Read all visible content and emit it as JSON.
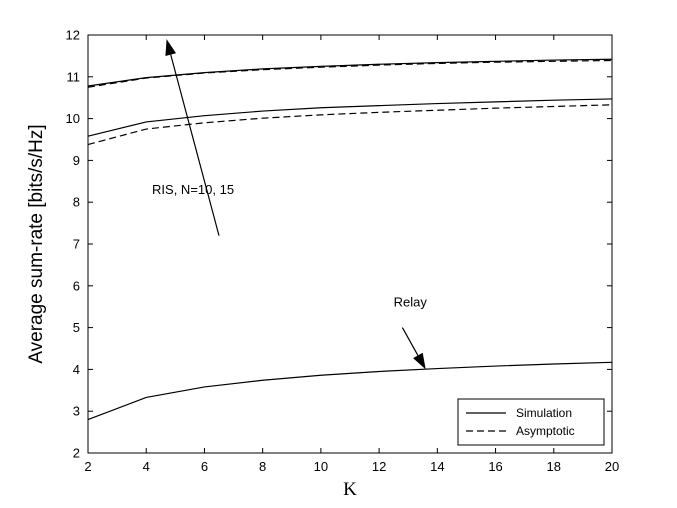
{
  "chart_data": {
    "type": "line",
    "title": "",
    "xlabel": "K",
    "ylabel": "Average sum-rate [bits/s/Hz]",
    "xlim": [
      2,
      20
    ],
    "ylim": [
      2,
      12
    ],
    "xticks": [
      2,
      4,
      6,
      8,
      10,
      12,
      14,
      16,
      18,
      20
    ],
    "yticks": [
      2,
      3,
      4,
      5,
      6,
      7,
      8,
      9,
      10,
      11,
      12
    ],
    "grid": false,
    "legend_position": "bottom-right",
    "legend": [
      {
        "label": "Simulation",
        "style": "solid"
      },
      {
        "label": "Asymptotic",
        "style": "dashed"
      }
    ],
    "x": [
      2,
      4,
      6,
      8,
      10,
      12,
      14,
      16,
      18,
      20
    ],
    "series": [
      {
        "style": "solid",
        "values": [
          10.78,
          10.98,
          11.1,
          11.19,
          11.25,
          11.3,
          11.34,
          11.37,
          11.4,
          11.42
        ]
      },
      {
        "style": "dashed",
        "values": [
          10.75,
          10.97,
          11.09,
          11.17,
          11.23,
          11.28,
          11.32,
          11.35,
          11.37,
          11.39
        ]
      },
      {
        "style": "solid",
        "values": [
          9.58,
          9.92,
          10.07,
          10.18,
          10.26,
          10.31,
          10.36,
          10.4,
          10.44,
          10.47
        ]
      },
      {
        "style": "dashed",
        "values": [
          9.38,
          9.75,
          9.9,
          10.01,
          10.09,
          10.15,
          10.2,
          10.25,
          10.29,
          10.33
        ]
      },
      {
        "style": "solid",
        "values": [
          2.8,
          3.33,
          3.58,
          3.74,
          3.86,
          3.95,
          4.02,
          4.08,
          4.13,
          4.17
        ]
      }
    ],
    "annotations": [
      {
        "text": "RIS, N=10, 15",
        "text_x": 4.2,
        "text_y": 8.2,
        "arrow_from": [
          6.5,
          7.2
        ],
        "arrow_to": [
          4.7,
          11.9
        ]
      },
      {
        "text": "Relay",
        "text_x": 12.5,
        "text_y": 5.5,
        "arrow_from": [
          12.8,
          5.0
        ],
        "arrow_to": [
          13.6,
          4.0
        ]
      }
    ]
  }
}
